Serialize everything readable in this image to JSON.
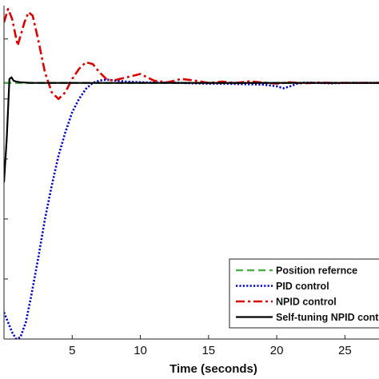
{
  "chart_data": {
    "type": "line",
    "xlabel": "Time (seconds)",
    "ylabel": "",
    "title": "",
    "xlim": [
      0,
      27.5
    ],
    "ylim": [
      0,
      1.0
    ],
    "x_ticks": [
      5,
      10,
      15,
      20,
      25
    ],
    "grid": false,
    "legend_position": "bottom-right",
    "series": [
      {
        "name": "Position refernce",
        "color": "#4daf4a",
        "style": "dashed",
        "x": [
          0,
          27.5
        ],
        "y": [
          0.768,
          0.768
        ]
      },
      {
        "name": "PID control",
        "color": "#0000cc",
        "style": "dotted",
        "x": [
          0,
          0.3,
          0.6,
          0.9,
          1.2,
          1.6,
          2.0,
          2.5,
          3.0,
          3.5,
          4.0,
          4.5,
          5.0,
          5.5,
          6.0,
          6.5,
          7.0,
          7.5,
          8.0,
          9.0,
          10.0,
          11.0,
          12.0,
          13.0,
          14.0,
          15.0,
          16.0,
          17.0,
          18.0,
          19.0,
          20.0,
          20.5,
          21.0,
          21.5,
          22.0,
          23.0,
          24.0,
          25.0,
          26.0,
          27.5
        ],
        "y": [
          0.08,
          0.05,
          0.02,
          0.0,
          0.005,
          0.05,
          0.13,
          0.24,
          0.36,
          0.46,
          0.55,
          0.62,
          0.68,
          0.72,
          0.75,
          0.768,
          0.775,
          0.778,
          0.776,
          0.772,
          0.77,
          0.769,
          0.769,
          0.768,
          0.767,
          0.766,
          0.766,
          0.765,
          0.764,
          0.763,
          0.758,
          0.752,
          0.758,
          0.766,
          0.769,
          0.768,
          0.767,
          0.768,
          0.768,
          0.768
        ]
      },
      {
        "name": "NPID control",
        "color": "#dd0000",
        "style": "dashdot",
        "x": [
          0,
          0.3,
          0.6,
          1.0,
          1.5,
          1.8,
          2.1,
          2.5,
          3.0,
          3.5,
          4.0,
          4.5,
          5.0,
          5.5,
          6.0,
          6.5,
          7.0,
          7.5,
          8.0,
          8.5,
          9.0,
          9.5,
          10.0,
          10.5,
          11.0,
          12.0,
          13.0,
          14.0,
          15.0,
          16.0,
          17.0,
          18.0,
          19.0,
          20.0,
          21.0,
          22.0,
          23.0,
          24.0,
          25.0,
          26.0,
          27.5
        ],
        "y": [
          0.95,
          0.99,
          0.96,
          0.88,
          0.95,
          0.98,
          0.97,
          0.9,
          0.8,
          0.74,
          0.72,
          0.74,
          0.78,
          0.81,
          0.83,
          0.825,
          0.8,
          0.78,
          0.775,
          0.78,
          0.785,
          0.79,
          0.795,
          0.785,
          0.775,
          0.77,
          0.78,
          0.775,
          0.768,
          0.772,
          0.768,
          0.773,
          0.769,
          0.766,
          0.77,
          0.767,
          0.769,
          0.768,
          0.768,
          0.768,
          0.768
        ]
      },
      {
        "name": "Self-tuning NPID control",
        "color": "#000000",
        "style": "solid",
        "x": [
          0,
          0.2,
          0.4,
          0.55,
          0.7,
          0.9,
          1.2,
          1.6,
          2.0,
          3.0,
          5.0,
          10.0,
          15.0,
          20.0,
          25.0,
          27.5
        ],
        "y": [
          0.47,
          0.6,
          0.78,
          0.785,
          0.775,
          0.772,
          0.77,
          0.769,
          0.768,
          0.768,
          0.768,
          0.768,
          0.768,
          0.768,
          0.768,
          0.768
        ]
      }
    ]
  }
}
